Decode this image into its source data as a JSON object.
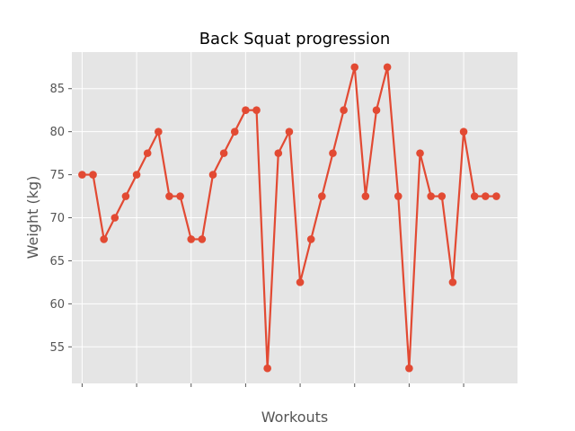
{
  "chart_data": {
    "type": "line",
    "title": "Back Squat progression",
    "xlabel": "Workouts",
    "ylabel": "Weight (kg)",
    "x_tick_labels_shown": false,
    "ylim": [
      50.75,
      89.25
    ],
    "yticks": [
      55,
      60,
      65,
      70,
      75,
      80,
      85
    ],
    "grid": true,
    "series": [
      {
        "color": "#e24a33",
        "marker": "circle",
        "x": [
          0,
          1,
          2,
          3,
          4,
          5,
          6,
          7,
          8,
          9,
          10,
          11,
          12,
          13,
          14,
          15,
          16,
          17,
          18,
          19,
          20,
          21,
          22,
          23,
          24,
          25,
          26,
          27,
          28,
          29,
          30,
          31,
          32,
          33,
          34,
          35,
          36,
          37,
          38
        ],
        "values": [
          75,
          75,
          67.5,
          70,
          72.5,
          75,
          77.5,
          80,
          72.5,
          72.5,
          67.5,
          67.5,
          75,
          77.5,
          80,
          82.5,
          82.5,
          52.5,
          77.5,
          80,
          62.5,
          67.5,
          72.5,
          77.5,
          82.5,
          87.5,
          72.5,
          82.5,
          87.5,
          72.5,
          52.5,
          77.5,
          72.5,
          72.5,
          62.5,
          80,
          72.5,
          72.5,
          72.5
        ]
      }
    ]
  }
}
